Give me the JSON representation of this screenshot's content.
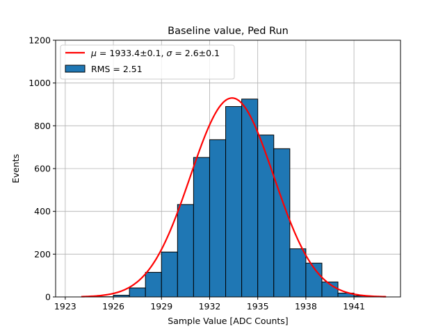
{
  "chart_data": {
    "type": "bar",
    "title": "Baseline value, Ped Run",
    "xlabel": "Sample Value [ADC Counts]",
    "ylabel": "Events",
    "xlim": [
      1922.4,
      1943.9
    ],
    "ylim": [
      0,
      1200
    ],
    "xticks": [
      1923,
      1926,
      1929,
      1932,
      1935,
      1938,
      1941
    ],
    "yticks": [
      0,
      200,
      400,
      600,
      800,
      1000,
      1200
    ],
    "grid": true,
    "legend_position": "top-left",
    "bin_width": 1,
    "bins": [
      {
        "x": 1925.5,
        "y": 1
      },
      {
        "x": 1926.5,
        "y": 8
      },
      {
        "x": 1927.5,
        "y": 42
      },
      {
        "x": 1928.5,
        "y": 115
      },
      {
        "x": 1929.5,
        "y": 210
      },
      {
        "x": 1930.5,
        "y": 432
      },
      {
        "x": 1931.5,
        "y": 652
      },
      {
        "x": 1932.5,
        "y": 735
      },
      {
        "x": 1933.5,
        "y": 890
      },
      {
        "x": 1934.5,
        "y": 925
      },
      {
        "x": 1935.5,
        "y": 757
      },
      {
        "x": 1936.5,
        "y": 693
      },
      {
        "x": 1937.5,
        "y": 225
      },
      {
        "x": 1938.5,
        "y": 158
      },
      {
        "x": 1939.5,
        "y": 70
      },
      {
        "x": 1940.5,
        "y": 18
      },
      {
        "x": 1941.5,
        "y": 5
      }
    ],
    "fit": {
      "type": "gaussian",
      "amplitude": 930,
      "mean": 1933.4,
      "sigma": 2.6,
      "x_range": [
        1924,
        1943
      ]
    },
    "legend": {
      "fit_label_mu": "μ",
      "fit_label_eq1": " = 1933.4±0.1, ",
      "fit_label_sigma": "σ",
      "fit_label_eq2": " = 2.6±0.1",
      "hist_label": "RMS = 2.51"
    },
    "colors": {
      "bar_fill": "#1f77b4",
      "bar_edge": "#000000",
      "fit_line": "#ff0000",
      "grid": "#b0b0b0"
    }
  }
}
